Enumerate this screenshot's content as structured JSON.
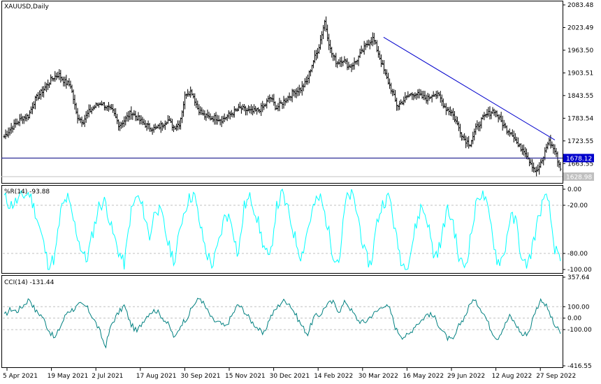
{
  "chart_data": [
    {
      "type": "ohlc",
      "title": "XAUUSD,Daily",
      "y_ticks": [
        "2083.48",
        "2023.49",
        "1963.50",
        "1903.51",
        "1843.55",
        "1783.54",
        "1723.55",
        "1663.55"
      ],
      "ylim": [
        1628.98,
        2083.48
      ],
      "current_price_label": "1628.98",
      "horizontal_line_label": "1678.12",
      "horizontal_line_value": 1678.12,
      "trendline": {
        "from": {
          "date": "2022-04-18",
          "price": 1998
        },
        "to": {
          "date": "2022-10-05",
          "price": 1726
        }
      },
      "approx_closes_weekly": [
        1735,
        1755,
        1770,
        1785,
        1790,
        1830,
        1850,
        1870,
        1890,
        1900,
        1880,
        1870,
        1790,
        1775,
        1800,
        1815,
        1825,
        1812,
        1800,
        1765,
        1780,
        1800,
        1785,
        1770,
        1760,
        1755,
        1765,
        1780,
        1760,
        1770,
        1850,
        1855,
        1810,
        1790,
        1785,
        1785,
        1780,
        1790,
        1800,
        1810,
        1805,
        1800,
        1805,
        1815,
        1840,
        1810,
        1825,
        1840,
        1855,
        1860,
        1880,
        1930,
        1970,
        2040,
        1960,
        1930,
        1940,
        1920,
        1930,
        1955,
        1980,
        1995,
        1950,
        1900,
        1860,
        1815,
        1830,
        1845,
        1850,
        1840,
        1835,
        1850,
        1840,
        1810,
        1800,
        1765,
        1730,
        1715,
        1755,
        1780,
        1795,
        1805,
        1780,
        1755,
        1745,
        1710,
        1700,
        1668,
        1640,
        1670,
        1725,
        1700,
        1650
      ]
    },
    {
      "type": "line",
      "title": "%R(14) -93.88",
      "color": "#00ffff",
      "ylim": [
        -100,
        0
      ],
      "y_ticks": [
        "0.00",
        "-20.00",
        "-80.00",
        "-100.00"
      ],
      "levels": [
        -20,
        -80
      ],
      "approx_values_weekly": [
        -10,
        -20,
        -15,
        -8,
        -5,
        -30,
        -60,
        -95,
        -85,
        -25,
        -10,
        -40,
        -70,
        -90,
        -55,
        -20,
        -15,
        -50,
        -75,
        -95,
        -30,
        -8,
        -25,
        -60,
        -20,
        -35,
        -70,
        -90,
        -40,
        -15,
        -5,
        -45,
        -80,
        -95,
        -65,
        -30,
        -40,
        -85,
        -20,
        -10,
        -35,
        -70,
        -90,
        -25,
        -5,
        -30,
        -60,
        -85,
        -50,
        -20,
        -10,
        -40,
        -80,
        -90,
        -15,
        -5,
        -35,
        -80,
        -95,
        -40,
        -15,
        -10,
        -60,
        -95,
        -90,
        -50,
        -20,
        -40,
        -85,
        -70,
        -25,
        -40,
        -90,
        -95,
        -50,
        -5,
        -10,
        -45,
        -90,
        -85,
        -35,
        -40,
        -95,
        -90,
        -55,
        -20,
        -10,
        -70,
        -95
      ]
    },
    {
      "type": "line",
      "title": "CCI(14) -131.44",
      "color": "#008080",
      "ylim": [
        -416.55,
        357.64
      ],
      "y_ticks": [
        "357.64",
        "100.00",
        "0.00",
        "-100.00",
        "-416.55"
      ],
      "levels": [
        100,
        0,
        -100
      ],
      "approx_values_weekly": [
        20,
        80,
        60,
        110,
        170,
        60,
        20,
        -100,
        -180,
        -60,
        60,
        80,
        120,
        100,
        10,
        -100,
        -250,
        -50,
        40,
        110,
        -50,
        -120,
        -20,
        50,
        70,
        10,
        -60,
        -180,
        -50,
        10,
        120,
        180,
        80,
        -20,
        -40,
        -80,
        20,
        120,
        60,
        -20,
        -80,
        -150,
        0,
        80,
        150,
        140,
        40,
        -60,
        -140,
        10,
        30,
        120,
        140,
        60,
        150,
        60,
        -20,
        -40,
        20,
        60,
        120,
        80,
        -100,
        -160,
        -150,
        -60,
        -20,
        40,
        10,
        -80,
        -170,
        -200,
        -60,
        30,
        160,
        120,
        30,
        -100,
        -180,
        -80,
        20,
        -60,
        -150,
        -120,
        60,
        170,
        80,
        -60,
        -130
      ]
    }
  ],
  "x_tick_labels": [
    "5 Apr 2021",
    "19 May 2021",
    "2 Jul 2021",
    "17 Aug 2021",
    "30 Sep 2021",
    "15 Nov 2021",
    "30 Dec 2021",
    "14 Feb 2022",
    "30 Mar 2022",
    "16 May 2022",
    "29 Jun 2022",
    "12 Aug 2022",
    "27 Sep 2022"
  ],
  "colors": {
    "background": "#ffffff",
    "bars": "#000000",
    "trendline": "#0000cc",
    "hline": "#000080",
    "hline_label_bg": "#0000cc",
    "price_label_bg": "#c0c0c0",
    "wpr_line": "#00ffff",
    "cci_line": "#008080",
    "level": "#c0c0c0"
  }
}
